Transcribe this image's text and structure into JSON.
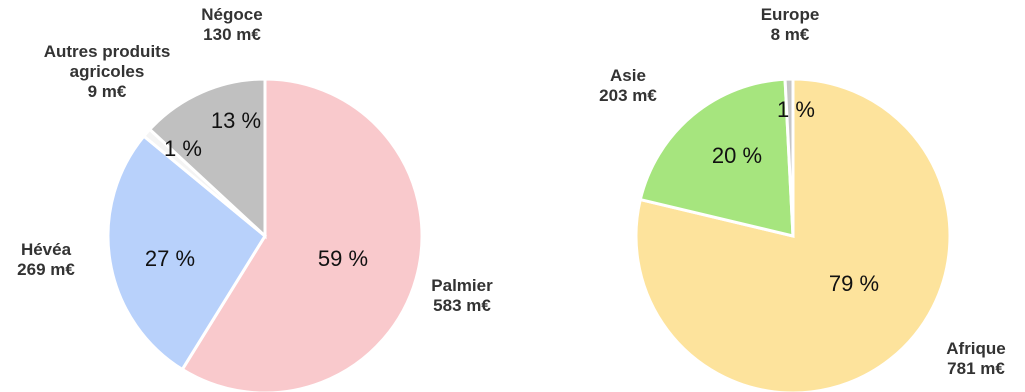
{
  "chart_data": [
    {
      "type": "pie",
      "slices": [
        {
          "label": "Palmier",
          "value_label": "583 m€",
          "value": 583,
          "percent_label": "59 %",
          "color": "#f9c9cc"
        },
        {
          "label": "Hévéa",
          "value_label": "269 m€",
          "value": 269,
          "percent_label": "27 %",
          "color": "#b8d1fb"
        },
        {
          "label": "Autres produits agricoles",
          "label_lines": [
            "Autres produits",
            "agricoles"
          ],
          "value_label": "9 m€",
          "value": 9,
          "percent_label": "1 %",
          "color": "#f4f4f4"
        },
        {
          "label": "Négoce",
          "value_label": "130 m€",
          "value": 130,
          "percent_label": "13 %",
          "color": "#c0c0c0"
        }
      ]
    },
    {
      "type": "pie",
      "slices": [
        {
          "label": "Afrique",
          "value_label": "781 m€",
          "value": 781,
          "percent_label": "79 %",
          "color": "#fde39c"
        },
        {
          "label": "Asie",
          "value_label": "203 m€",
          "value": 203,
          "percent_label": "20 %",
          "color": "#a6e57e"
        },
        {
          "label": "Europe",
          "value_label": "8 m€",
          "value": 8,
          "percent_label": "1 %",
          "color": "#c6c6c6"
        }
      ]
    }
  ]
}
